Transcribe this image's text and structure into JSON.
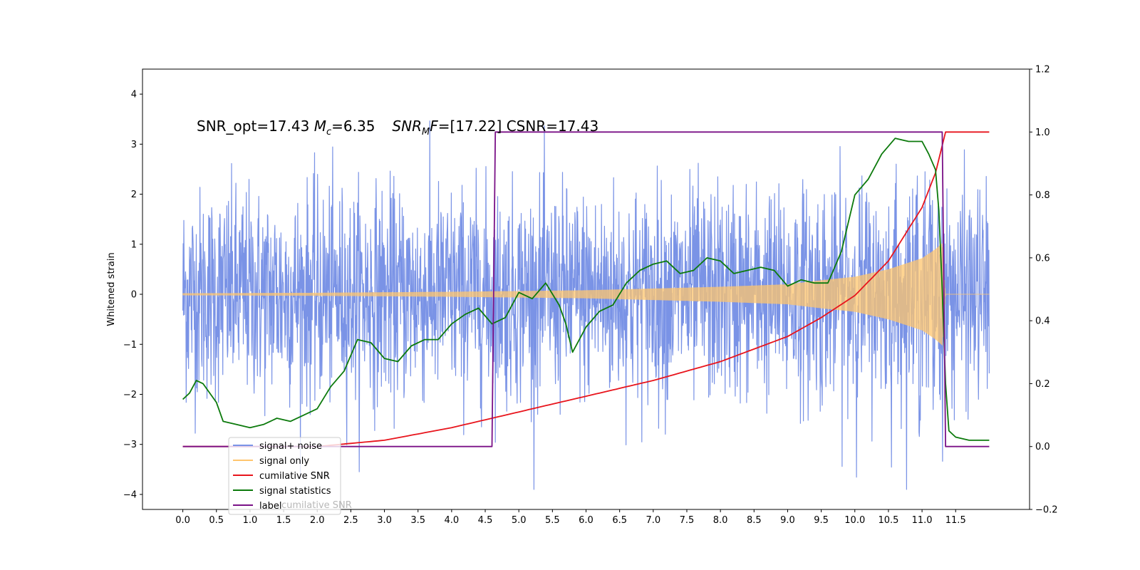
{
  "chart_data": {
    "type": "line",
    "annotation": {
      "part1": "SNR_opt=17.43 ",
      "mc_symbol": "M",
      "mc_sub": "c",
      "mc_value": "=6.35",
      "snr_symbol": "SNR",
      "snr_sub": "M",
      "snr_F": "F",
      "snr_value": "=[17.22] CSNR=17.43"
    },
    "ylabel": "Whitened strain",
    "xlabel": "",
    "xlim": [
      -0.6,
      12.6
    ],
    "ylim": [
      -4.3,
      4.5
    ],
    "y2lim": [
      -0.2,
      1.2
    ],
    "x_ticks": [
      "0.0",
      "0.5",
      "1.0",
      "1.5",
      "2.0",
      "2.5",
      "3.0",
      "3.5",
      "4.0",
      "4.5",
      "5.0",
      "5.5",
      "6.0",
      "6.5",
      "7.0",
      "7.5",
      "8.0",
      "8.5",
      "9.0",
      "9.5",
      "10.0",
      "10.5",
      "11.0",
      "11.5"
    ],
    "y_ticks": [
      "4",
      "3",
      "2",
      "1",
      "0",
      "−1",
      "−2",
      "−3",
      "−4"
    ],
    "y2_ticks": [
      "1.2",
      "1.0",
      "0.8",
      "0.6",
      "0.4",
      "0.2",
      "0.0",
      "−0.2"
    ],
    "legend": {
      "placement": "lower-left",
      "ghost_text": "cumilative SNR",
      "entries": [
        {
          "label": "signal+ noise",
          "color": "#7a93e6"
        },
        {
          "label": "signal only",
          "color": "#ffc56e"
        },
        {
          "label": "cumilative SNR",
          "color": "#e8141c"
        },
        {
          "label": "signal statistics",
          "color": "#0c7a0c"
        },
        {
          "label": "label",
          "color": "#7a1187"
        }
      ]
    },
    "series": [
      {
        "name": "signal+ noise",
        "axis": "left",
        "x_range": [
          0,
          12.0
        ],
        "approx_std": 1.0
      },
      {
        "name": "signal only",
        "axis": "left",
        "x_range": [
          0,
          12.0
        ],
        "envelope": {
          "x": [
            0,
            2,
            4,
            6,
            8,
            9,
            9.5,
            10,
            10.5,
            11,
            11.2,
            11.3,
            11.35,
            12.0
          ],
          "y": [
            0.02,
            0.03,
            0.05,
            0.08,
            0.15,
            0.2,
            0.28,
            0.35,
            0.5,
            0.72,
            0.9,
            1.02,
            0,
            0
          ]
        }
      },
      {
        "name": "cumilative SNR",
        "axis": "right",
        "x": [
          0,
          1,
          2,
          3,
          4,
          5,
          6,
          7,
          8,
          9,
          9.5,
          10,
          10.5,
          11,
          11.2,
          11.35,
          12.0
        ],
        "y": [
          0.0,
          0.0,
          0.0,
          0.02,
          0.06,
          0.11,
          0.16,
          0.21,
          0.27,
          0.35,
          0.41,
          0.48,
          0.59,
          0.76,
          0.87,
          1.0,
          1.0
        ]
      },
      {
        "name": "signal statistics",
        "axis": "right",
        "x": [
          0,
          0.1,
          0.2,
          0.3,
          0.5,
          0.6,
          0.8,
          1.0,
          1.2,
          1.4,
          1.6,
          1.8,
          2.0,
          2.2,
          2.4,
          2.5,
          2.6,
          2.8,
          3.0,
          3.2,
          3.4,
          3.6,
          3.8,
          4.0,
          4.2,
          4.4,
          4.6,
          4.8,
          5.0,
          5.2,
          5.4,
          5.6,
          5.7,
          5.8,
          6.0,
          6.2,
          6.4,
          6.6,
          6.8,
          7.0,
          7.2,
          7.4,
          7.6,
          7.8,
          8.0,
          8.2,
          8.4,
          8.6,
          8.8,
          9.0,
          9.2,
          9.4,
          9.6,
          9.8,
          10.0,
          10.2,
          10.4,
          10.6,
          10.8,
          11.0,
          11.1,
          11.2,
          11.25,
          11.3,
          11.35,
          11.4,
          11.5,
          11.7,
          11.9,
          12.0
        ],
        "y": [
          0.15,
          0.17,
          0.21,
          0.2,
          0.14,
          0.08,
          0.07,
          0.06,
          0.07,
          0.09,
          0.08,
          0.1,
          0.12,
          0.19,
          0.24,
          0.29,
          0.34,
          0.33,
          0.28,
          0.27,
          0.32,
          0.34,
          0.34,
          0.39,
          0.42,
          0.44,
          0.39,
          0.41,
          0.49,
          0.47,
          0.52,
          0.45,
          0.39,
          0.3,
          0.38,
          0.43,
          0.45,
          0.52,
          0.56,
          0.58,
          0.59,
          0.55,
          0.56,
          0.6,
          0.59,
          0.55,
          0.56,
          0.57,
          0.56,
          0.51,
          0.53,
          0.52,
          0.52,
          0.62,
          0.8,
          0.85,
          0.93,
          0.98,
          0.97,
          0.97,
          0.93,
          0.88,
          0.75,
          0.5,
          0.2,
          0.05,
          0.03,
          0.02,
          0.02,
          0.02
        ]
      },
      {
        "name": "label",
        "axis": "right",
        "x": [
          0,
          4.6,
          4.65,
          11.3,
          11.35,
          12.0
        ],
        "y": [
          0.0,
          0.0,
          1.0,
          1.0,
          0.0,
          0.0
        ]
      }
    ]
  }
}
